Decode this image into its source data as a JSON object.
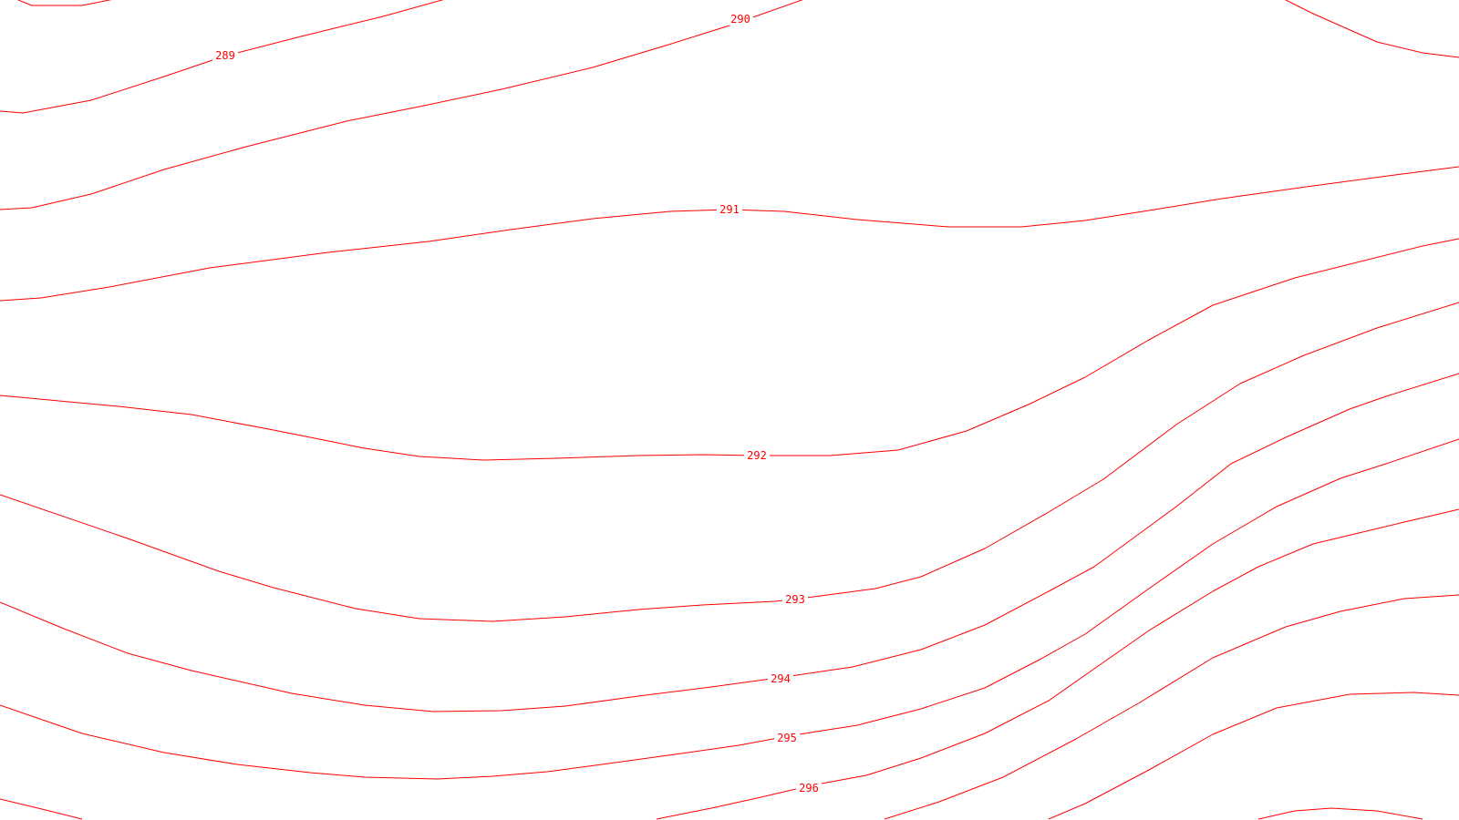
{
  "map": {
    "type": "isoline-contour-map",
    "line_color": "#ff0000",
    "background_color": "#ffffff",
    "labels": {
      "l289": "289",
      "l290": "290",
      "l291": "291",
      "l292": "292",
      "l293": "293",
      "l294": "294",
      "l295": "295",
      "l296": "296"
    }
  }
}
